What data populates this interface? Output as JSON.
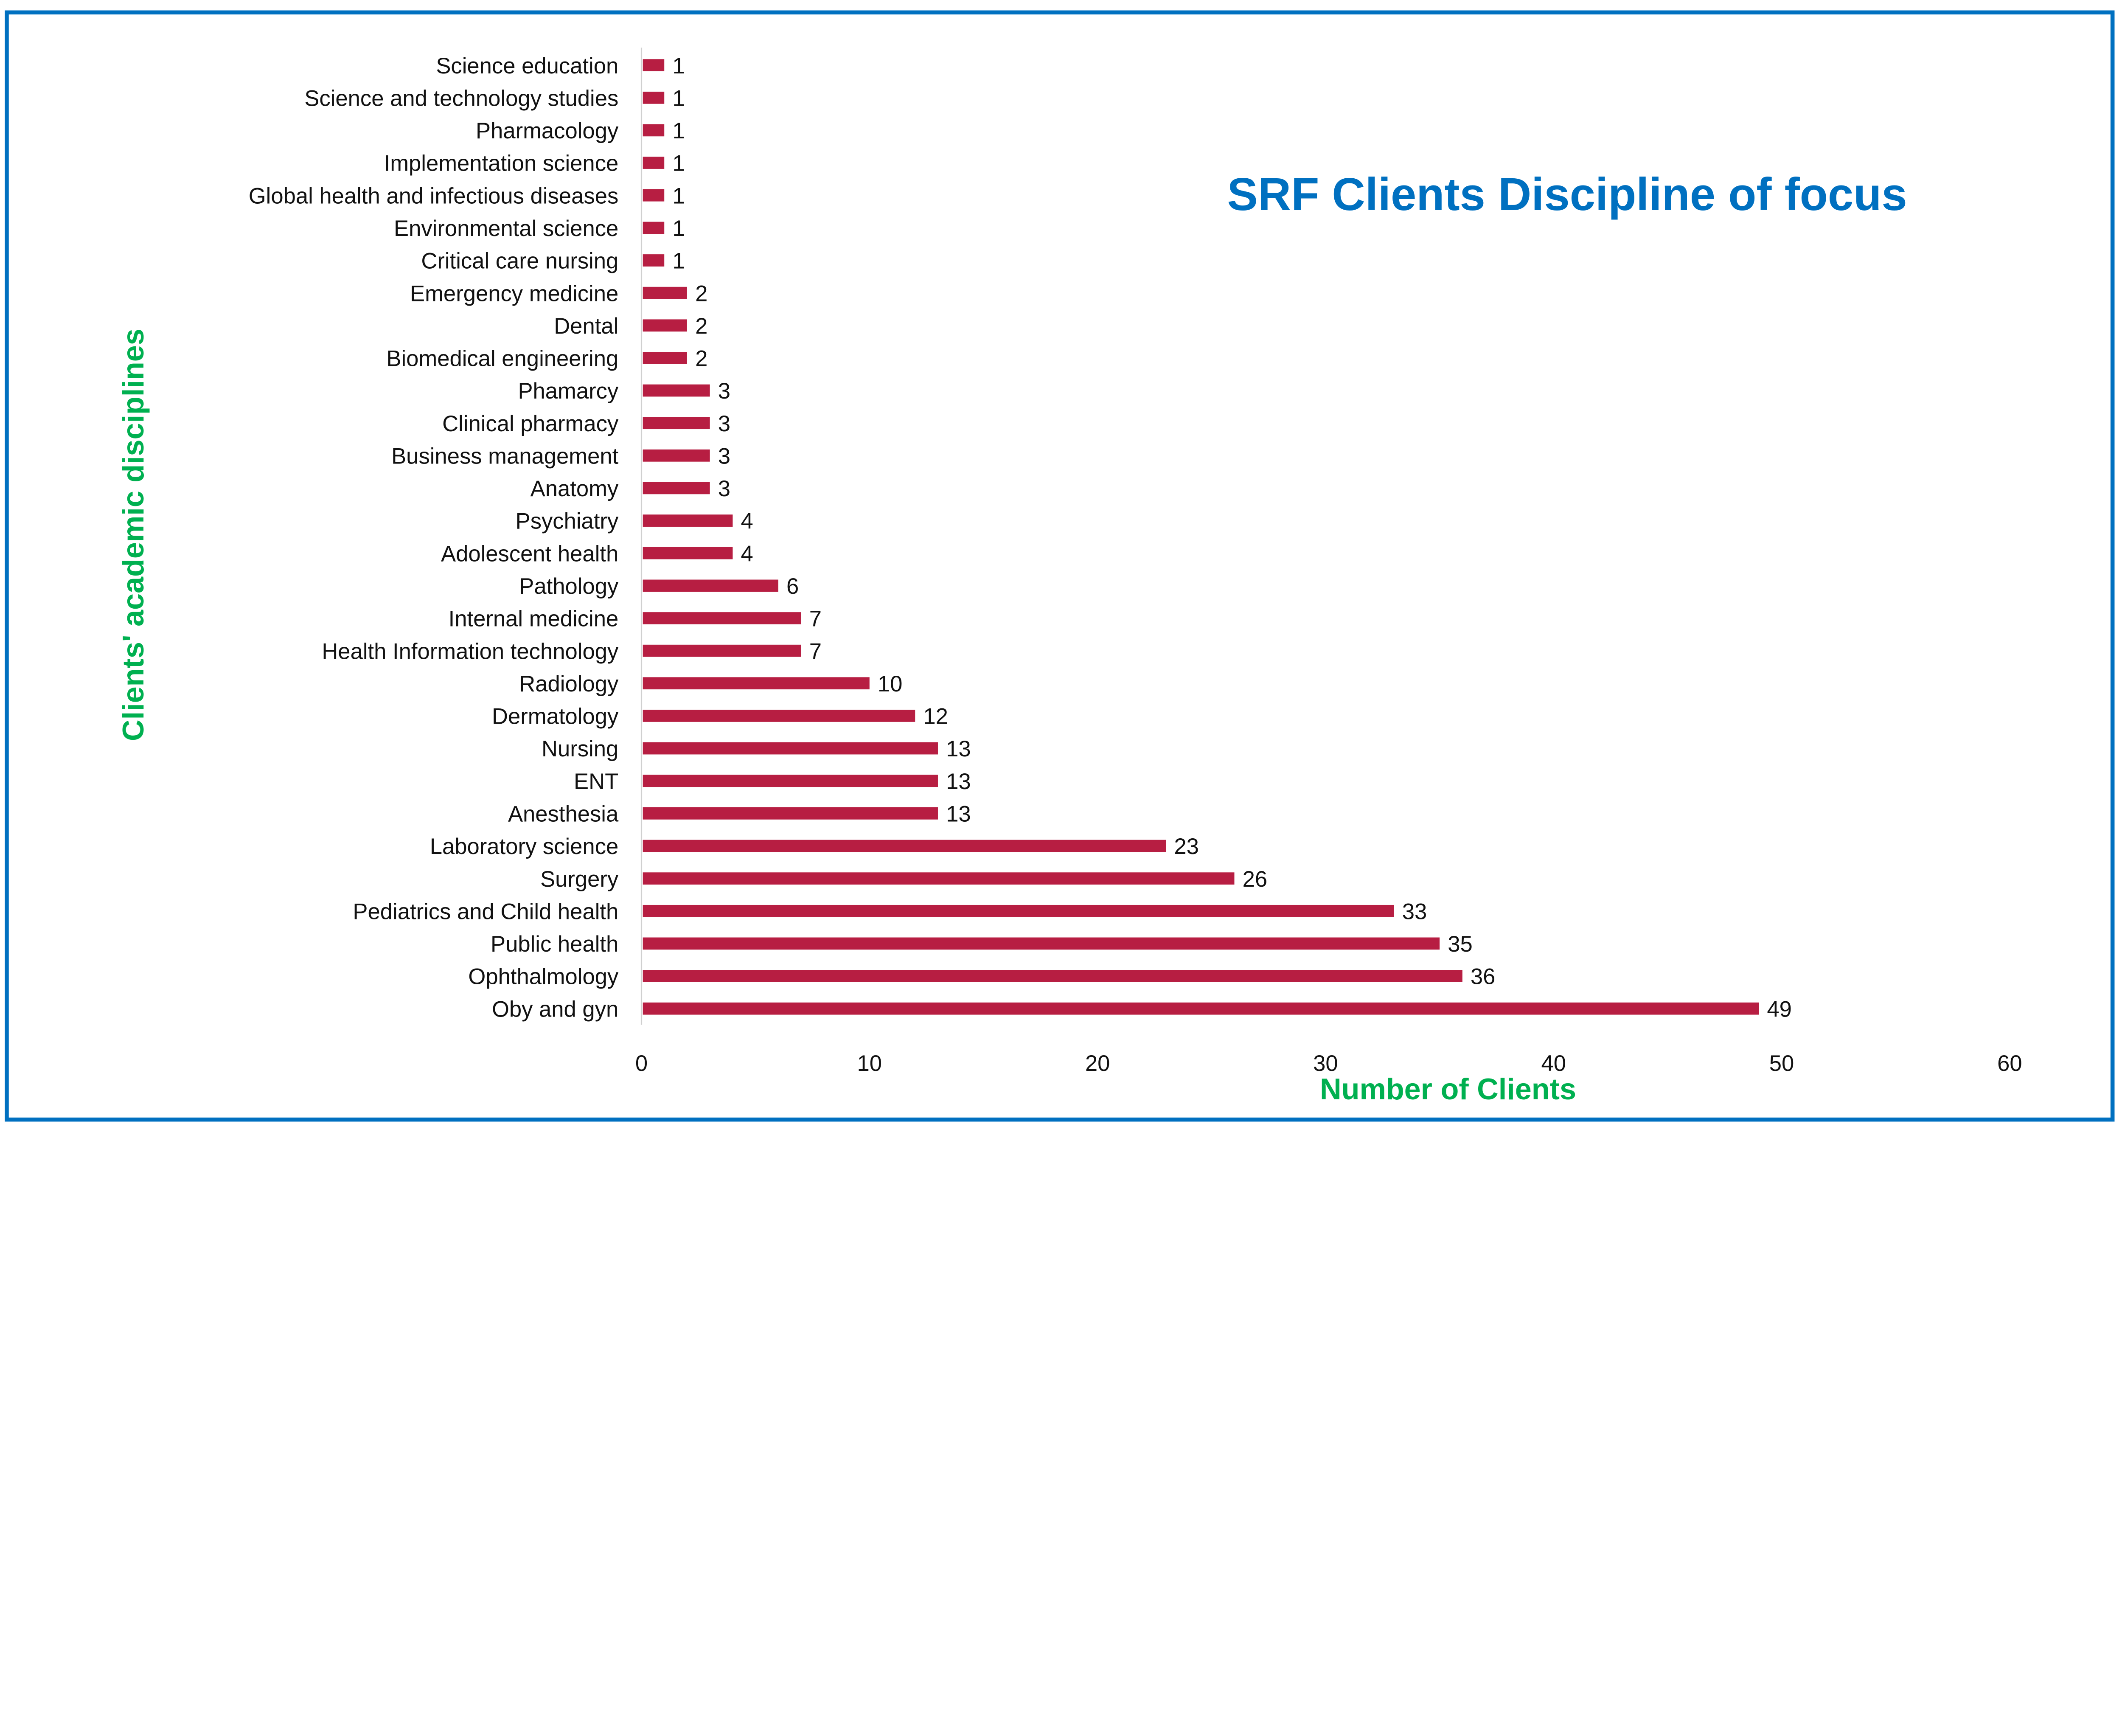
{
  "chart_data": {
    "type": "bar",
    "orientation": "horizontal",
    "title": "SRF Clients Discipline of focus",
    "xlabel": "Number of Clients",
    "ylabel": "Clients' academic disciplines",
    "xlim": [
      0,
      60
    ],
    "xticks": [
      0,
      10,
      20,
      30,
      40,
      50,
      60
    ],
    "grid": false,
    "legend": "none",
    "categories": [
      "Science education",
      "Science and technology studies",
      "Pharmacology",
      "Implementation science",
      "Global health and infectious diseases",
      "Environmental science",
      "Critical care nursing",
      "Emergency medicine",
      "Dental",
      "Biomedical engineering",
      "Phamarcy",
      "Clinical pharmacy",
      "Business management",
      "Anatomy",
      "Psychiatry",
      "Adolescent health",
      "Pathology",
      "Internal medicine",
      "Health Information technology",
      "Radiology",
      "Dermatology",
      "Nursing",
      "ENT",
      "Anesthesia",
      "Laboratory science",
      "Surgery",
      "Pediatrics and Child health",
      "Public health",
      "Ophthalmology",
      "Oby and gyn"
    ],
    "values": [
      1,
      1,
      1,
      1,
      1,
      1,
      1,
      2,
      2,
      2,
      3,
      3,
      3,
      3,
      4,
      4,
      6,
      7,
      7,
      10,
      12,
      13,
      13,
      13,
      23,
      26,
      33,
      35,
      36,
      49
    ]
  },
  "colors": {
    "bar": "#B71E42",
    "title": "#0070C0",
    "axis_title": "#00B050",
    "border": "#0070C0",
    "axis_line": "#D0D0D0"
  }
}
